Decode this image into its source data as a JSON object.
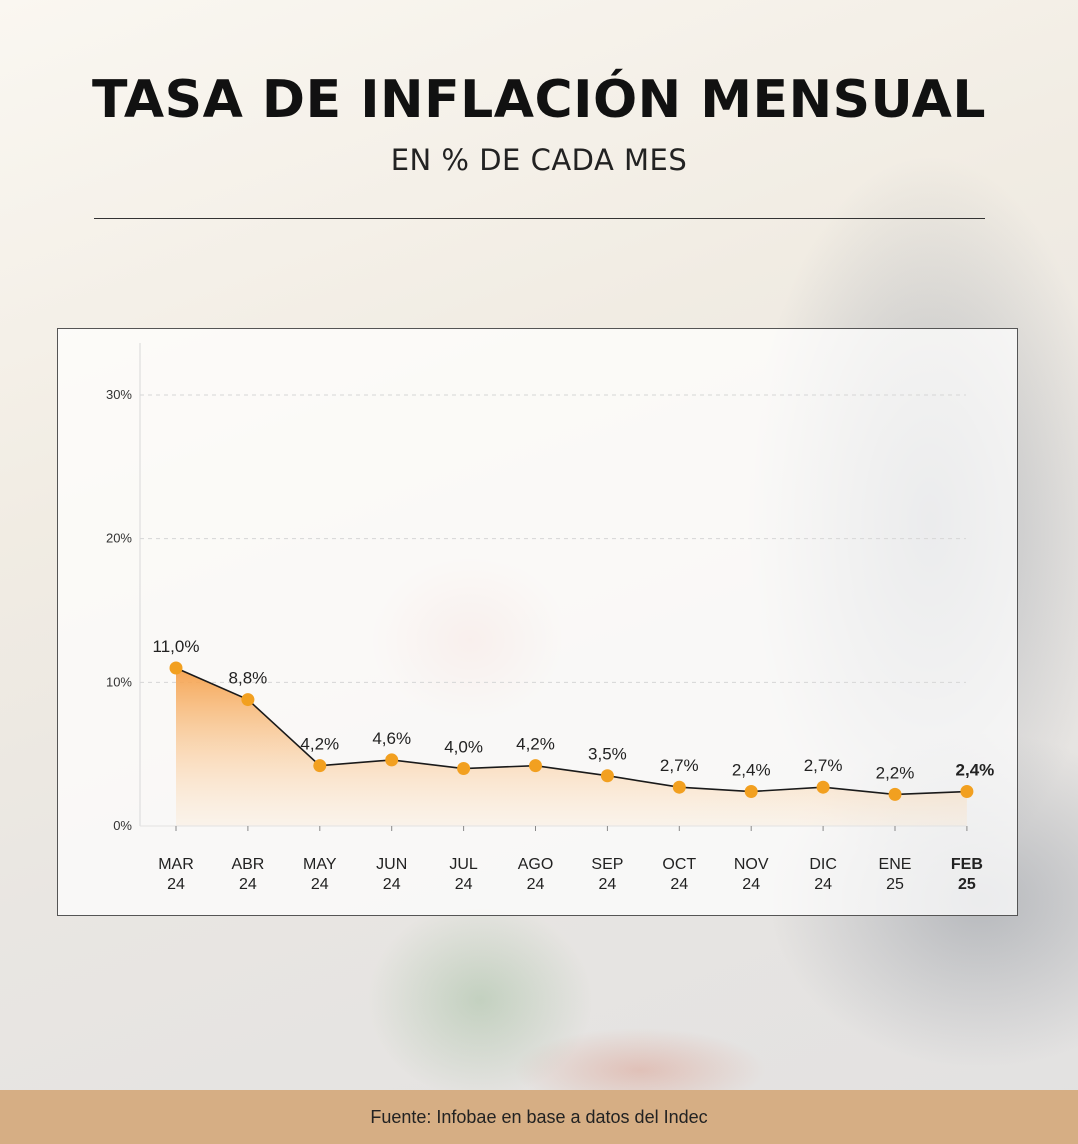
{
  "header": {
    "title": "TASA DE INFLACIÓN MENSUAL",
    "subtitle": "EN % DE CADA MES"
  },
  "footer": {
    "source": "Fuente: Infobae en base a datos del Indec"
  },
  "colors": {
    "line": "#1a1a1a",
    "marker": "#f2a020",
    "area_top": "#f5a04a",
    "footer_bg": "#d6ae84"
  },
  "chart_data": {
    "type": "area",
    "categories": [
      [
        "MAR",
        "24"
      ],
      [
        "ABR",
        "24"
      ],
      [
        "MAY",
        "24"
      ],
      [
        "JUN",
        "24"
      ],
      [
        "JUL",
        "24"
      ],
      [
        "AGO",
        "24"
      ],
      [
        "SEP",
        "24"
      ],
      [
        "OCT",
        "24"
      ],
      [
        "NOV",
        "24"
      ],
      [
        "DIC",
        "24"
      ],
      [
        "ENE",
        "25"
      ],
      [
        "FEB",
        "25"
      ]
    ],
    "values": [
      11.0,
      8.8,
      4.2,
      4.6,
      4.0,
      4.2,
      3.5,
      2.7,
      2.4,
      2.7,
      2.2,
      2.4
    ],
    "value_labels": [
      "11,0%",
      "8,8%",
      "4,2%",
      "4,6%",
      "4,0%",
      "4,2%",
      "3,5%",
      "2,7%",
      "2,4%",
      "2,7%",
      "2,2%",
      "2,4%"
    ],
    "highlighted_index": 11,
    "yticks": [
      0,
      10,
      20,
      30
    ],
    "ytick_labels": [
      "0%",
      "10%",
      "20%",
      "30%"
    ],
    "ylim": [
      0,
      30
    ],
    "grid": true
  }
}
